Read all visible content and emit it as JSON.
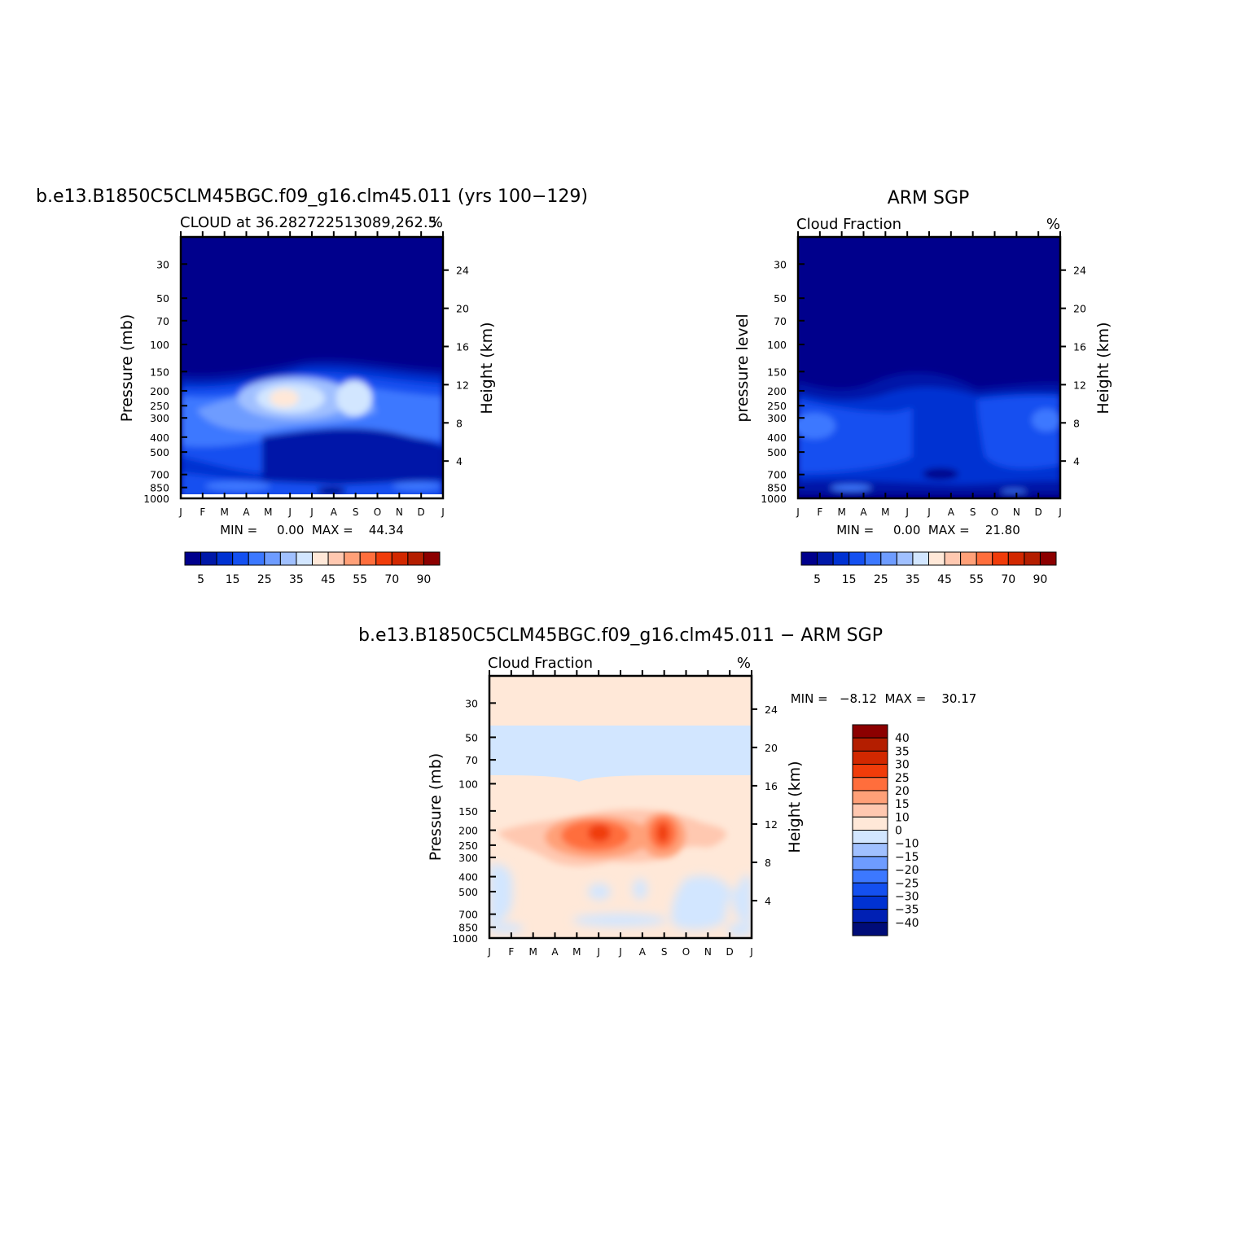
{
  "palette": {
    "cloud": [
      "#00008c",
      "#0018a8",
      "#0032d2",
      "#1450f0",
      "#3c78ff",
      "#6e9cff",
      "#a0c0ff",
      "#d2e6ff",
      "#ffe8d8",
      "#ffc8b0",
      "#ffa078",
      "#ff6e3c",
      "#f03c0a",
      "#d22800",
      "#b41e00",
      "#8c0000"
    ],
    "diff": [
      "#000c78",
      "#0020b4",
      "#0032d2",
      "#1450f0",
      "#3c78ff",
      "#6e9cff",
      "#a0c0ff",
      "#d2e6ff",
      "#ffe8d8",
      "#ffc8b0",
      "#ffa078",
      "#ff6e3c",
      "#f03c0a",
      "#d22800",
      "#b41e00",
      "#8c0000"
    ]
  },
  "panels": {
    "model": {
      "title": "b.e13.B1850C5CLM45BGC.f09_g16.clm45.011 (yrs 100−129)",
      "subtitle": "CLOUD at 36.282722513089,262.5",
      "units": "%",
      "ylabel": "Pressure (mb)",
      "ylabel_right": "Height (km)",
      "minmax": "MIN =     0.00  MAX =    44.34",
      "cbar_labels": [
        "5",
        "15",
        "25",
        "35",
        "45",
        "55",
        "70",
        "90"
      ]
    },
    "obs": {
      "title": "ARM SGP",
      "subtitle": "Cloud Fraction",
      "units": "%",
      "ylabel": "pressure level",
      "ylabel_right": "Height (km)",
      "minmax": "MIN =     0.00  MAX =    21.80",
      "cbar_labels": [
        "5",
        "15",
        "25",
        "35",
        "45",
        "55",
        "70",
        "90"
      ]
    },
    "diff": {
      "title": "b.e13.B1850C5CLM45BGC.f09_g16.clm45.011 − ARM SGP",
      "subtitle": "Cloud Fraction",
      "units": "%",
      "ylabel": "Pressure (mb)",
      "ylabel_right": "Height (km)",
      "minmax": "MIN =   −8.12  MAX =    30.17",
      "cbar_labels": [
        "40",
        "35",
        "30",
        "25",
        "20",
        "15",
        "10",
        "0",
        "−10",
        "−15",
        "−20",
        "−25",
        "−30",
        "−35",
        "−40"
      ]
    }
  },
  "chart_data": [
    {
      "type": "heatmap",
      "title": "b.e13.B1850C5CLM45BGC.f09_g16.clm45.011 (yrs 100−129)",
      "subtitle": "CLOUD at 36.282722513089,262.5",
      "units": "%",
      "x": [
        "J",
        "F",
        "M",
        "A",
        "M",
        "J",
        "J",
        "A",
        "S",
        "O",
        "N",
        "D",
        "J"
      ],
      "y_pressure_mb": [
        30,
        50,
        70,
        100,
        150,
        200,
        250,
        300,
        400,
        500,
        700,
        850,
        1000
      ],
      "y_height_km": [
        4,
        8,
        12,
        16,
        20,
        24
      ],
      "xlabel": "",
      "ylabel": "Pressure (mb)",
      "ylabel_right": "Height (km)",
      "min": 0.0,
      "max": 44.34,
      "color_levels": [
        5,
        15,
        25,
        35,
        45,
        55,
        70,
        90
      ]
    },
    {
      "type": "heatmap",
      "title": "ARM SGP",
      "subtitle": "Cloud Fraction",
      "units": "%",
      "x": [
        "J",
        "F",
        "M",
        "A",
        "M",
        "J",
        "J",
        "A",
        "S",
        "O",
        "N",
        "D",
        "J"
      ],
      "y_pressure_mb": [
        30,
        50,
        70,
        100,
        150,
        200,
        250,
        300,
        400,
        500,
        700,
        850,
        1000
      ],
      "y_height_km": [
        4,
        8,
        12,
        16,
        20,
        24
      ],
      "ylabel": "pressure level",
      "ylabel_right": "Height (km)",
      "min": 0.0,
      "max": 21.8,
      "color_levels": [
        5,
        15,
        25,
        35,
        45,
        55,
        70,
        90
      ]
    },
    {
      "type": "heatmap",
      "title": "b.e13.B1850C5CLM45BGC.f09_g16.clm45.011 − ARM SGP",
      "subtitle": "Cloud Fraction",
      "units": "%",
      "x": [
        "J",
        "F",
        "M",
        "A",
        "M",
        "J",
        "J",
        "A",
        "S",
        "O",
        "N",
        "D",
        "J"
      ],
      "y_pressure_mb": [
        30,
        50,
        70,
        100,
        150,
        200,
        250,
        300,
        400,
        500,
        700,
        850,
        1000
      ],
      "y_height_km": [
        4,
        8,
        12,
        16,
        20,
        24
      ],
      "ylabel": "Pressure (mb)",
      "ylabel_right": "Height (km)",
      "min": -8.12,
      "max": 30.17,
      "color_levels": [
        40,
        35,
        30,
        25,
        20,
        15,
        10,
        0,
        -10,
        -15,
        -20,
        -25,
        -30,
        -35,
        -40
      ]
    }
  ]
}
